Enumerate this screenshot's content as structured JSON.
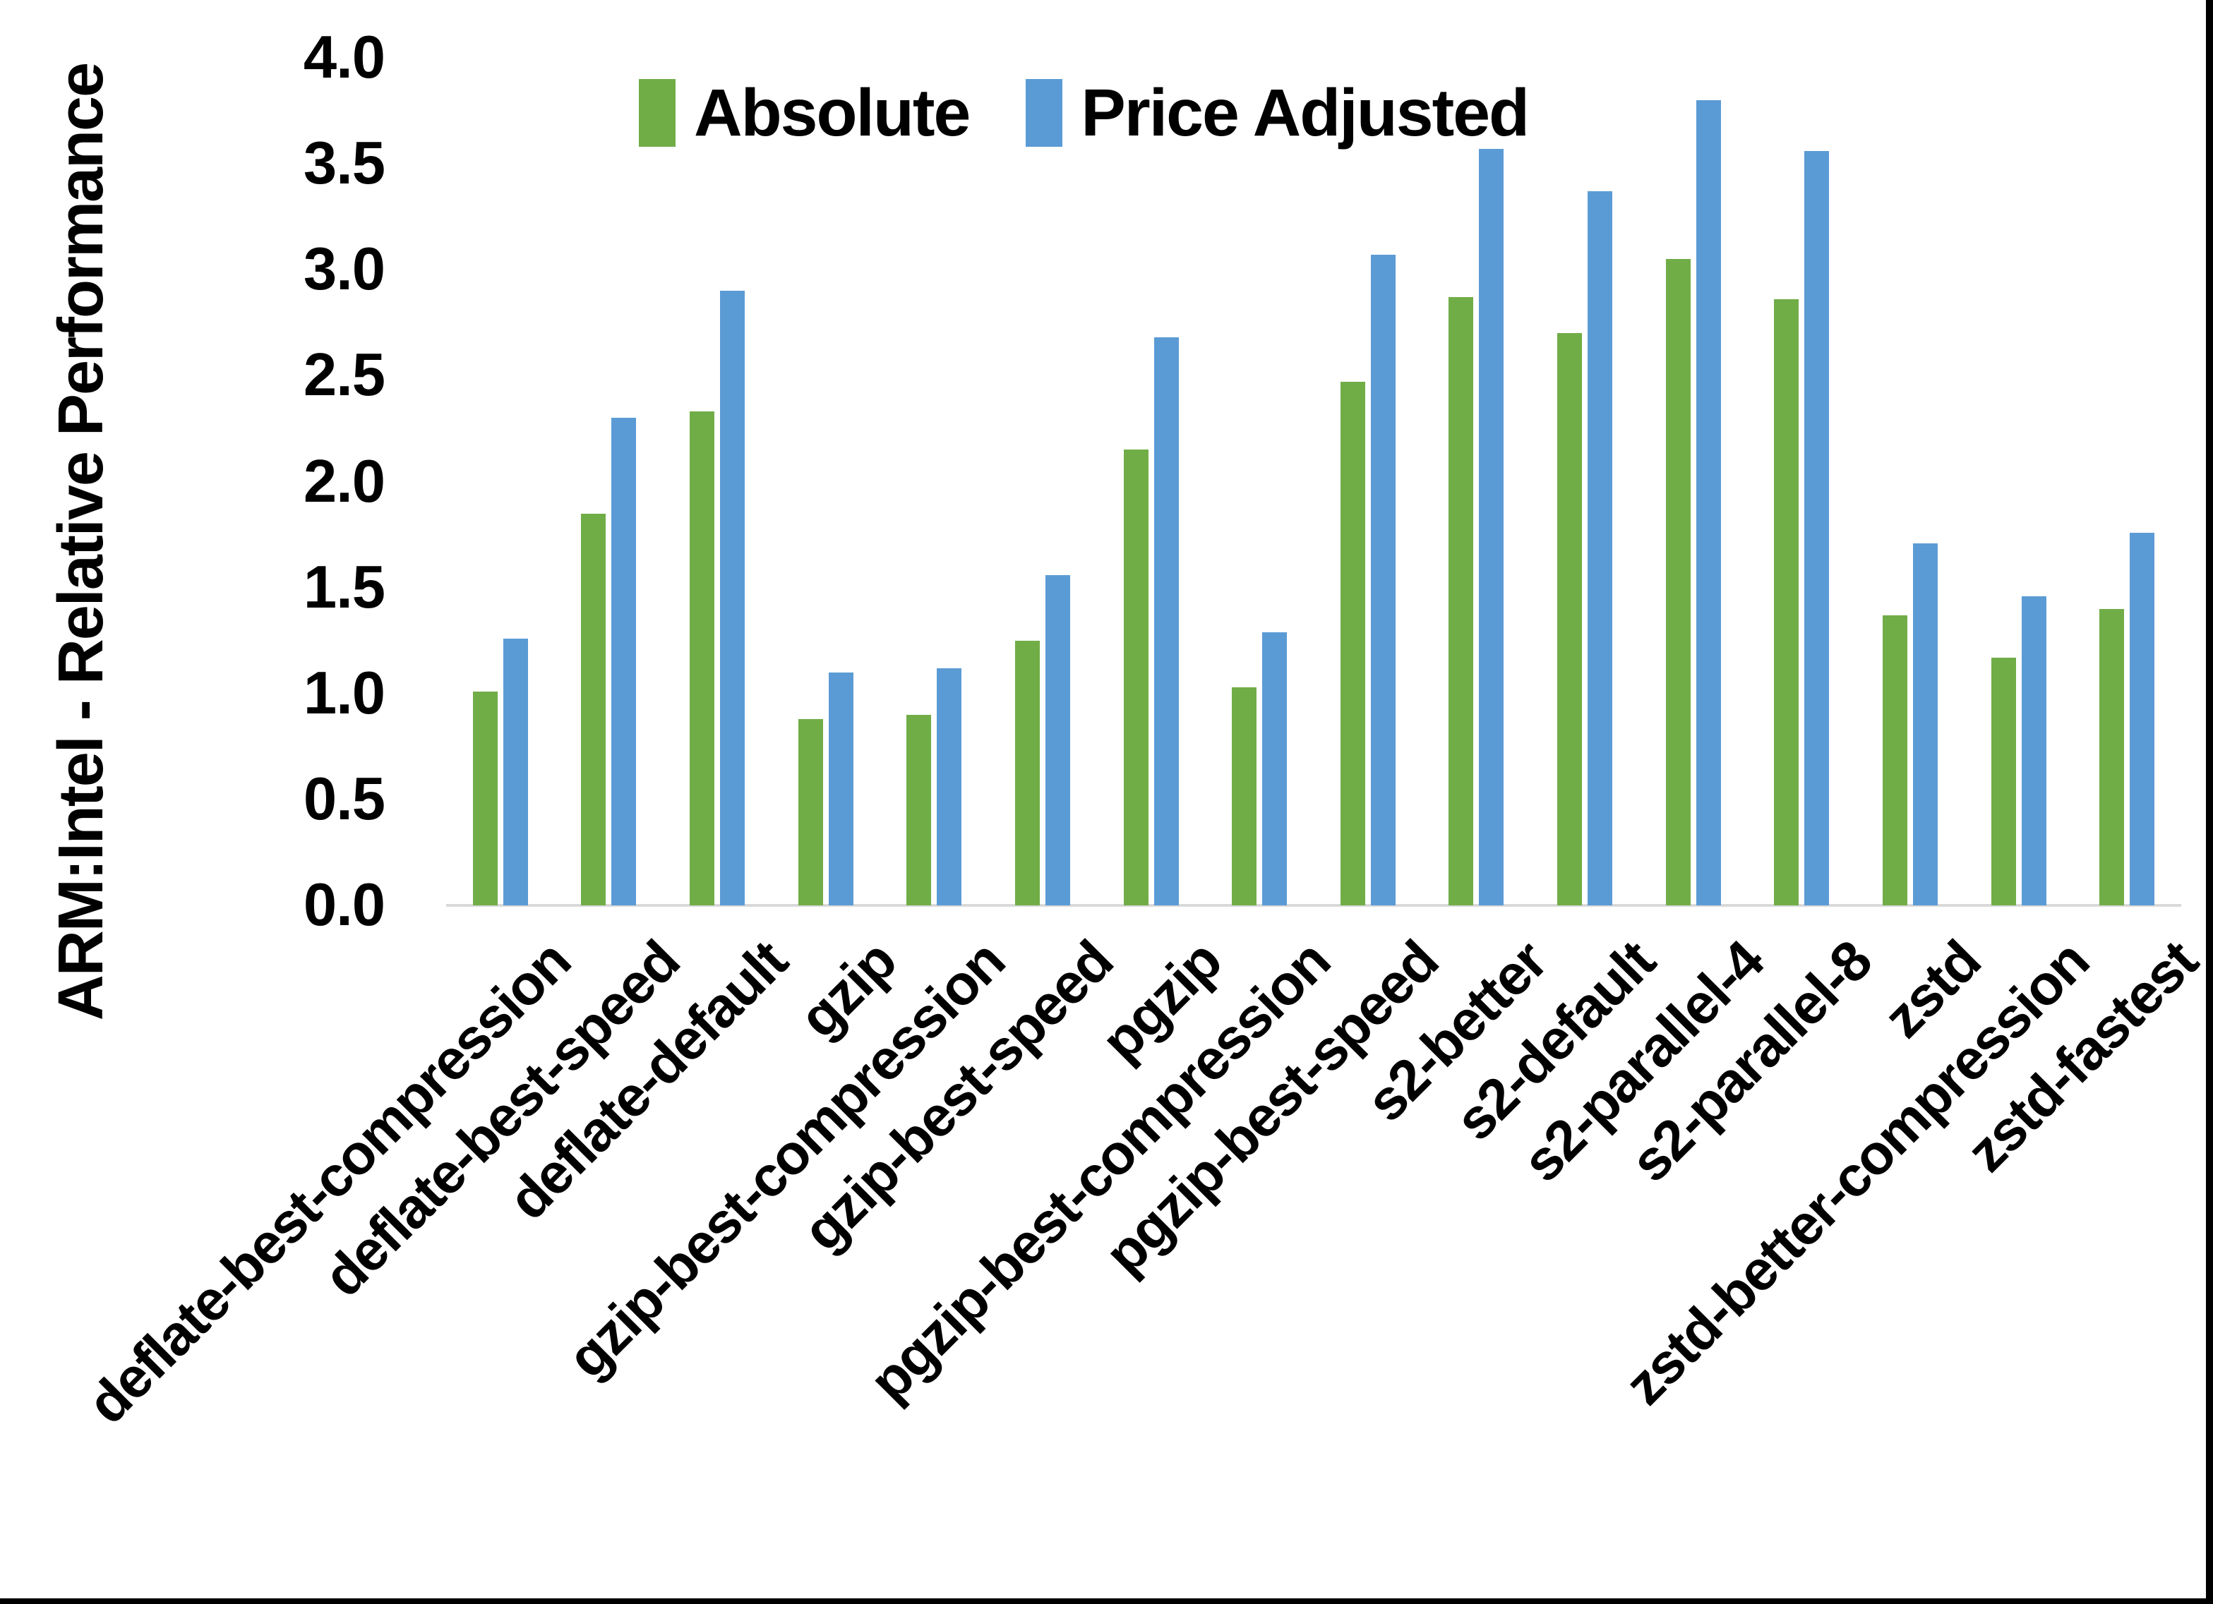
{
  "chart_data": {
    "type": "bar",
    "title": "",
    "ylabel": "ARM:Intel - Relative Performance",
    "xlabel": "",
    "ylim": [
      0,
      4
    ],
    "ytick_step": 0.5,
    "y_tick_labels": [
      "0.0",
      "0.5",
      "1.0",
      "1.5",
      "2.0",
      "2.5",
      "3.0",
      "3.5",
      "4.0"
    ],
    "grid": false,
    "legend_position": "top-center",
    "axis_line_color": "#D9D9D9",
    "border_color": "#000000",
    "categories": [
      "deflate-best-compression",
      "deflate-best-speed",
      "deflate-default",
      "gzip",
      "gzip-best-compression",
      "gzip-best-speed",
      "pgzip",
      "pgzip-best-compression",
      "pgzip-best-speed",
      "s2-better",
      "s2-default",
      "s2-parallel-4",
      "s2-parallel-8",
      "zstd",
      "zstd-better-compression",
      "zstd-fastest"
    ],
    "series": [
      {
        "name": "Absolute",
        "color": "#70AD47",
        "values": [
          1.01,
          1.85,
          2.33,
          0.88,
          0.9,
          1.25,
          2.15,
          1.03,
          2.47,
          2.87,
          2.7,
          3.05,
          2.86,
          1.37,
          1.17,
          1.4
        ]
      },
      {
        "name": "Price Adjusted",
        "color": "#5B9BD5",
        "values": [
          1.26,
          2.3,
          2.9,
          1.1,
          1.12,
          1.56,
          2.68,
          1.29,
          3.07,
          3.57,
          3.37,
          3.8,
          3.56,
          1.71,
          1.46,
          1.76
        ]
      }
    ]
  }
}
